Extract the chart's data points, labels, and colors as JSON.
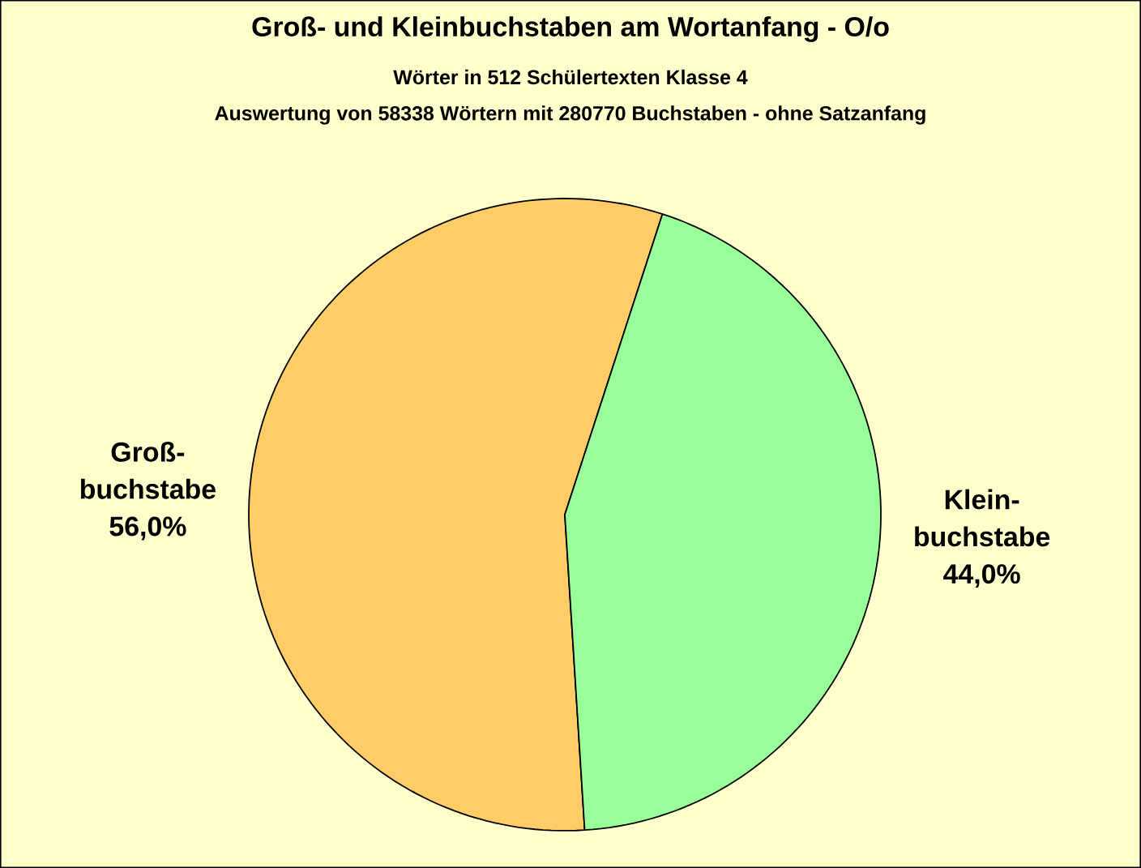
{
  "chart_data": {
    "type": "pie",
    "title": "Groß- und Kleinbuchstaben am Wortanfang - O/o",
    "subtitle": "Wörter in 512 Schülertexten Klasse 4",
    "annotations": [
      "Auswertung von 58338 Wörtern mit 280770 Buchstaben - ohne Satzanfang"
    ],
    "categories": [
      "Groß-buchstabe",
      "Klein-buchstabe"
    ],
    "values": [
      56.0,
      44.0
    ],
    "value_labels": [
      "56,0%",
      "44,0%"
    ],
    "colors": [
      "#ffcc66",
      "#99ff99"
    ]
  }
}
